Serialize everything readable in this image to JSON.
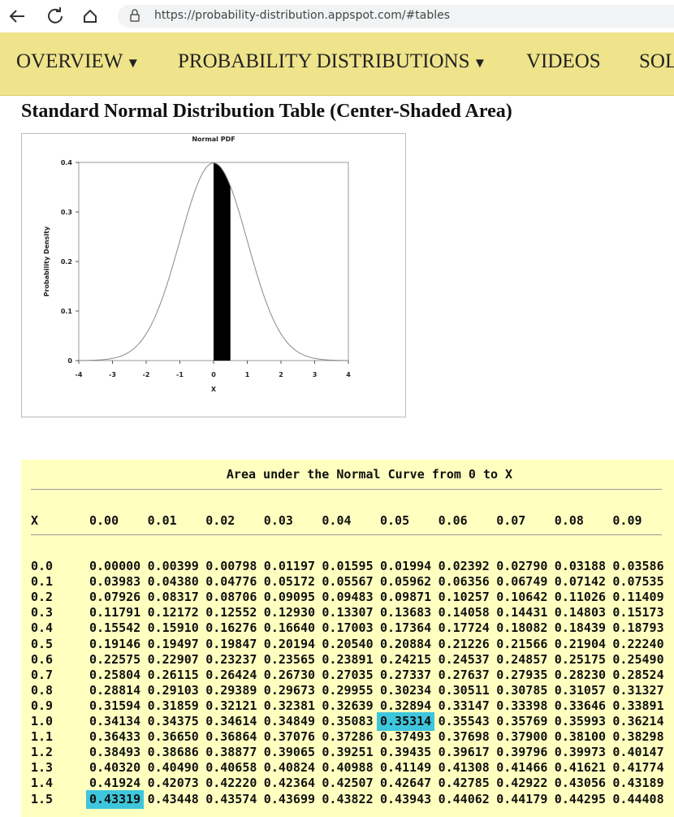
{
  "browser": {
    "url": "https://probability-distribution.appspot.com/#tables"
  },
  "nav": [
    "OVERVIEW",
    "PROBABILITY DISTRIBUTIONS",
    "VIDEOS",
    "SOL"
  ],
  "heading": "Standard Normal Distribution Table (Center-Shaded Area)",
  "figure": {
    "type": "line",
    "title": "Normal PDF",
    "xlabel": "X",
    "ylabel": "Probability Density",
    "xlim": [
      -4,
      4
    ],
    "ylim": [
      0,
      0.4
    ],
    "xticks": [
      -4,
      -3,
      -2,
      -1,
      0,
      1,
      2,
      3,
      4
    ],
    "yticks": [
      0,
      0.1,
      0.2,
      0.3,
      0.4
    ],
    "shaded": [
      0,
      0.5
    ]
  },
  "table": {
    "title": "Area under the Normal Curve from 0 to X",
    "corner": "X",
    "columns": [
      "0.00",
      "0.01",
      "0.02",
      "0.03",
      "0.04",
      "0.05",
      "0.06",
      "0.07",
      "0.08",
      "0.09"
    ],
    "highlight": [
      [
        10,
        5
      ],
      [
        15,
        0
      ]
    ],
    "rows": [
      {
        "label": "0.0",
        "cells": [
          "0.00000",
          "0.00399",
          "0.00798",
          "0.01197",
          "0.01595",
          "0.01994",
          "0.02392",
          "0.02790",
          "0.03188",
          "0.03586"
        ]
      },
      {
        "label": "0.1",
        "cells": [
          "0.03983",
          "0.04380",
          "0.04776",
          "0.05172",
          "0.05567",
          "0.05962",
          "0.06356",
          "0.06749",
          "0.07142",
          "0.07535"
        ]
      },
      {
        "label": "0.2",
        "cells": [
          "0.07926",
          "0.08317",
          "0.08706",
          "0.09095",
          "0.09483",
          "0.09871",
          "0.10257",
          "0.10642",
          "0.11026",
          "0.11409"
        ]
      },
      {
        "label": "0.3",
        "cells": [
          "0.11791",
          "0.12172",
          "0.12552",
          "0.12930",
          "0.13307",
          "0.13683",
          "0.14058",
          "0.14431",
          "0.14803",
          "0.15173"
        ]
      },
      {
        "label": "0.4",
        "cells": [
          "0.15542",
          "0.15910",
          "0.16276",
          "0.16640",
          "0.17003",
          "0.17364",
          "0.17724",
          "0.18082",
          "0.18439",
          "0.18793"
        ]
      },
      {
        "label": "0.5",
        "cells": [
          "0.19146",
          "0.19497",
          "0.19847",
          "0.20194",
          "0.20540",
          "0.20884",
          "0.21226",
          "0.21566",
          "0.21904",
          "0.22240"
        ]
      },
      {
        "label": "0.6",
        "cells": [
          "0.22575",
          "0.22907",
          "0.23237",
          "0.23565",
          "0.23891",
          "0.24215",
          "0.24537",
          "0.24857",
          "0.25175",
          "0.25490"
        ]
      },
      {
        "label": "0.7",
        "cells": [
          "0.25804",
          "0.26115",
          "0.26424",
          "0.26730",
          "0.27035",
          "0.27337",
          "0.27637",
          "0.27935",
          "0.28230",
          "0.28524"
        ]
      },
      {
        "label": "0.8",
        "cells": [
          "0.28814",
          "0.29103",
          "0.29389",
          "0.29673",
          "0.29955",
          "0.30234",
          "0.30511",
          "0.30785",
          "0.31057",
          "0.31327"
        ]
      },
      {
        "label": "0.9",
        "cells": [
          "0.31594",
          "0.31859",
          "0.32121",
          "0.32381",
          "0.32639",
          "0.32894",
          "0.33147",
          "0.33398",
          "0.33646",
          "0.33891"
        ]
      },
      {
        "label": "1.0",
        "cells": [
          "0.34134",
          "0.34375",
          "0.34614",
          "0.34849",
          "0.35083",
          "0.35314",
          "0.35543",
          "0.35769",
          "0.35993",
          "0.36214"
        ]
      },
      {
        "label": "1.1",
        "cells": [
          "0.36433",
          "0.36650",
          "0.36864",
          "0.37076",
          "0.37286",
          "0.37493",
          "0.37698",
          "0.37900",
          "0.38100",
          "0.38298"
        ]
      },
      {
        "label": "1.2",
        "cells": [
          "0.38493",
          "0.38686",
          "0.38877",
          "0.39065",
          "0.39251",
          "0.39435",
          "0.39617",
          "0.39796",
          "0.39973",
          "0.40147"
        ]
      },
      {
        "label": "1.3",
        "cells": [
          "0.40320",
          "0.40490",
          "0.40658",
          "0.40824",
          "0.40988",
          "0.41149",
          "0.41308",
          "0.41466",
          "0.41621",
          "0.41774"
        ]
      },
      {
        "label": "1.4",
        "cells": [
          "0.41924",
          "0.42073",
          "0.42220",
          "0.42364",
          "0.42507",
          "0.42647",
          "0.42785",
          "0.42922",
          "0.43056",
          "0.43189"
        ]
      },
      {
        "label": "1.5",
        "cells": [
          "0.43319",
          "0.43448",
          "0.43574",
          "0.43699",
          "0.43822",
          "0.43943",
          "0.44062",
          "0.44179",
          "0.44295",
          "0.44408"
        ]
      }
    ]
  }
}
